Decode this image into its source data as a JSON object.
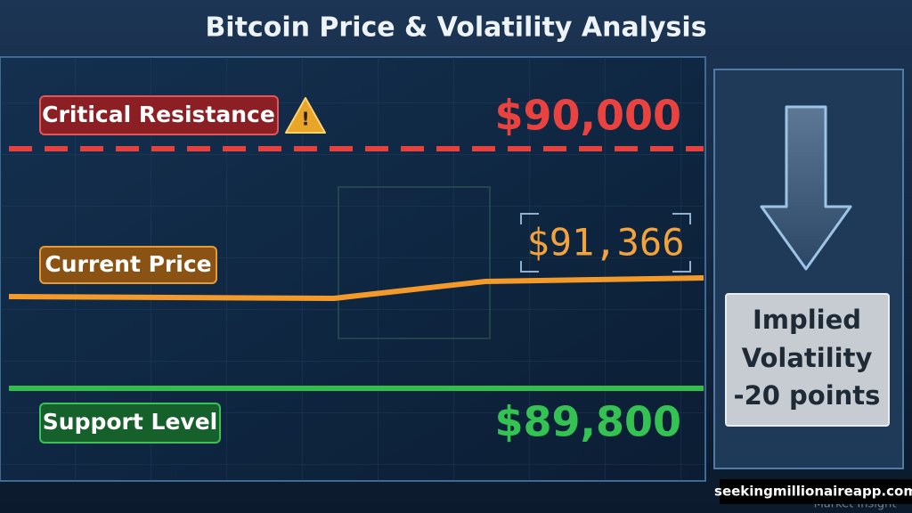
{
  "header": {
    "title": "Bitcoin Price & Volatility Analysis"
  },
  "levels": [
    {
      "label": "Critical Resistance",
      "value": "$90,000"
    },
    {
      "label": "Current Price",
      "value": "$91,366"
    },
    {
      "label": "Support Level",
      "value": "$89,800"
    }
  ],
  "volatility": {
    "lines": [
      "Implied",
      "Volatility",
      "-20 points"
    ]
  },
  "watermark": {
    "site": "seekingmillionaireapp.com",
    "caption": "Market Insight"
  }
}
